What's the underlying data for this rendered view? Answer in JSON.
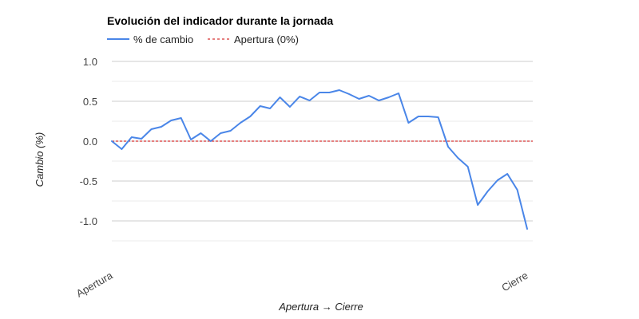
{
  "chart_data": {
    "type": "line",
    "title": "Evolución del indicador durante la jornada",
    "xlabel": "Apertura → Cierre",
    "ylabel": "Cambio (%)",
    "x_tick_labels": [
      "Apertura",
      "Cierre"
    ],
    "y_ticks": [
      "1.0",
      "0.5",
      "0.0",
      "-0.5",
      "-1.0"
    ],
    "ylim": [
      -1.25,
      1.0
    ],
    "grid": true,
    "legend_position": "top-left",
    "series": [
      {
        "name": "% de cambio",
        "color": "#4a86e8",
        "values": [
          0.0,
          -0.1,
          0.05,
          0.03,
          0.15,
          0.18,
          0.26,
          0.29,
          0.02,
          0.1,
          0.0,
          0.1,
          0.13,
          0.23,
          0.31,
          0.44,
          0.41,
          0.55,
          0.43,
          0.56,
          0.51,
          0.61,
          0.61,
          0.64,
          0.59,
          0.53,
          0.57,
          0.51,
          0.55,
          0.6,
          0.23,
          0.31,
          0.31,
          0.3,
          -0.07,
          -0.21,
          -0.32,
          -0.8,
          -0.63,
          -0.49,
          -0.41,
          -0.61,
          -1.1
        ]
      },
      {
        "name": "Apertura (0%)",
        "color": "#cc0000",
        "style": "dashed",
        "values": [
          0,
          0
        ]
      }
    ]
  }
}
